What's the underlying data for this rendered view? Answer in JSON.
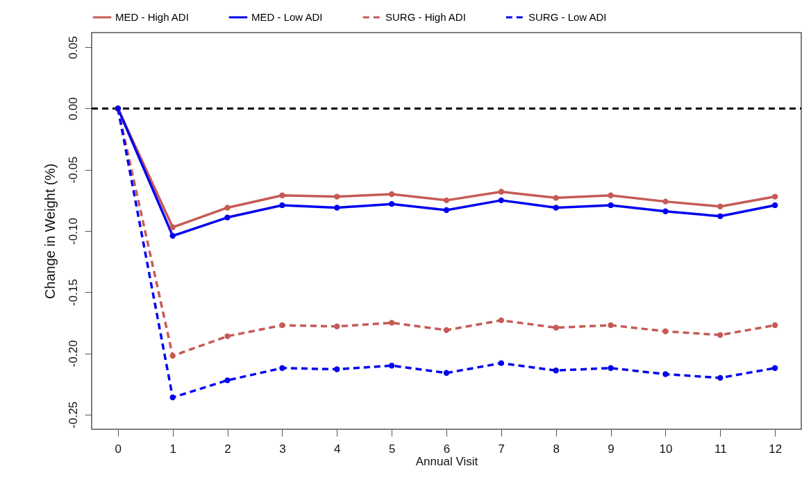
{
  "chart_data": {
    "type": "line",
    "xlabel": "Annual Visit",
    "ylabel": "Change in Weight (%)",
    "x": [
      0,
      1,
      2,
      3,
      4,
      5,
      6,
      7,
      8,
      9,
      10,
      11,
      12
    ],
    "series": [
      {
        "name": "MED - High ADI",
        "color": "#c65a55",
        "line_style": "solid",
        "values": [
          0,
          -0.097,
          -0.081,
          -0.071,
          -0.072,
          -0.07,
          -0.075,
          -0.068,
          -0.073,
          -0.071,
          -0.076,
          -0.08,
          -0.072
        ]
      },
      {
        "name": "MED - Low ADI",
        "color": "#0000f0",
        "line_style": "solid",
        "values": [
          0,
          -0.104,
          -0.089,
          -0.079,
          -0.081,
          -0.078,
          -0.083,
          -0.075,
          -0.081,
          -0.079,
          -0.084,
          -0.088,
          -0.079
        ]
      },
      {
        "name": "SURG - High ADI",
        "color": "#c65a55",
        "line_style": "dashed",
        "values": [
          0,
          -0.202,
          -0.186,
          -0.177,
          -0.178,
          -0.175,
          -0.181,
          -0.173,
          -0.179,
          -0.177,
          -0.182,
          -0.185,
          -0.177
        ]
      },
      {
        "name": "SURG - Low ADI",
        "color": "#0000f0",
        "line_style": "dashed",
        "values": [
          0,
          -0.236,
          -0.222,
          -0.212,
          -0.213,
          -0.21,
          -0.216,
          -0.208,
          -0.214,
          -0.212,
          -0.217,
          -0.22,
          -0.212
        ]
      }
    ],
    "xlim": [
      -0.48,
      12.48
    ],
    "xticks": [
      0,
      1,
      2,
      3,
      4,
      5,
      6,
      7,
      8,
      9,
      10,
      11,
      12
    ],
    "ylim": [
      -0.262,
      0.062
    ],
    "yticks": [
      {
        "value": -0.25,
        "label": "-0.25"
      },
      {
        "value": -0.2,
        "label": "-0.20"
      },
      {
        "value": -0.15,
        "label": "-0.15"
      },
      {
        "value": -0.1,
        "label": "-0.10"
      },
      {
        "value": -0.05,
        "label": "-0.05"
      },
      {
        "value": 0,
        "label": "0.00"
      },
      {
        "value": 0.05,
        "label": "0.05"
      }
    ],
    "ref_lines": [
      {
        "axis": "y",
        "value": 0,
        "color": "#000000",
        "line_style": "dashed"
      }
    ],
    "legend": "top",
    "marker": "circle",
    "grid": false
  }
}
